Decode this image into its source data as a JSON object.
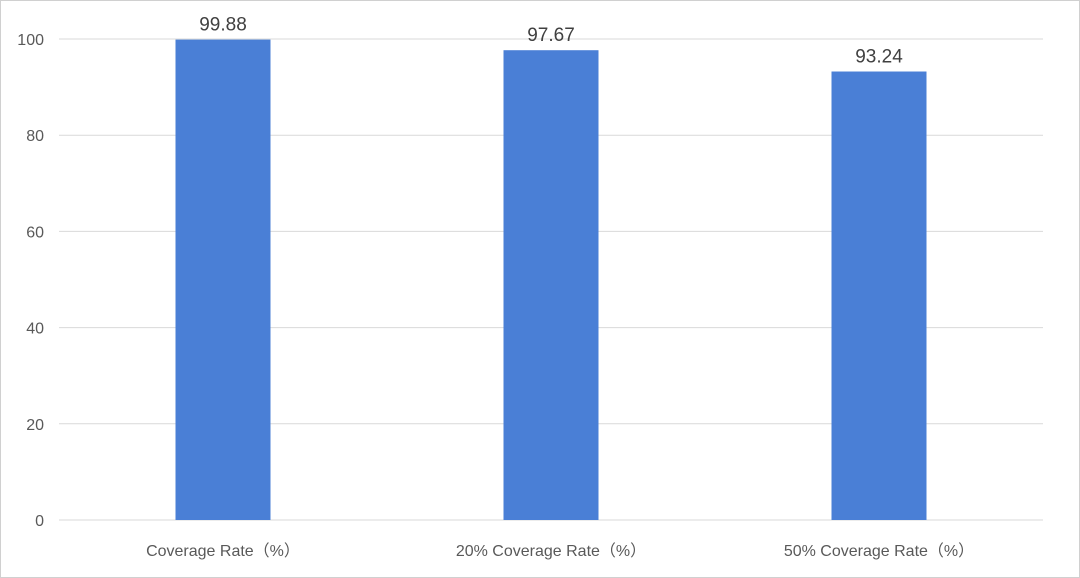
{
  "chart_data": {
    "type": "bar",
    "categories": [
      "Coverage Rate（%）",
      "20% Coverage Rate（%）",
      "50% Coverage Rate（%）"
    ],
    "values": [
      99.88,
      97.67,
      93.24
    ],
    "data_labels": [
      "99.88",
      "97.67",
      "93.24"
    ],
    "yticks": [
      "0",
      "20",
      "40",
      "60",
      "80",
      "100"
    ],
    "ylim": [
      0,
      100
    ],
    "title": "",
    "xlabel": "",
    "ylabel": "",
    "grid": true,
    "legend": "none",
    "bar_color": "#4a7fd6"
  }
}
